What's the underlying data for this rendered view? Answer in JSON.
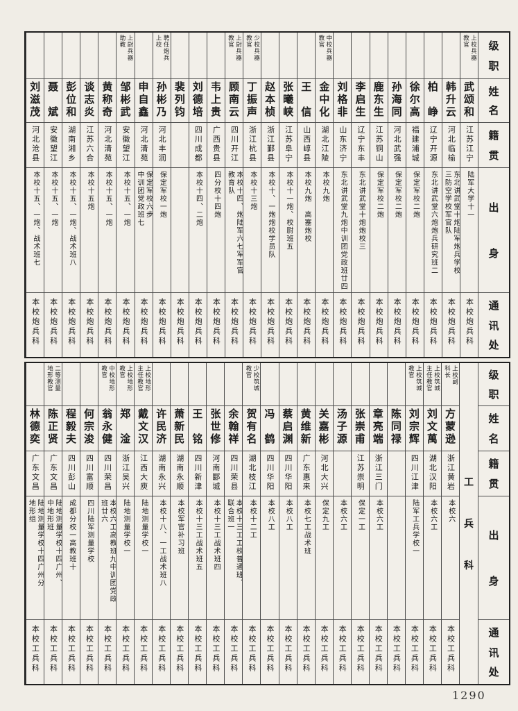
{
  "page": {
    "number": "1290"
  },
  "colors": {
    "paper": "#f0ede6",
    "ink": "#1b1b1b",
    "border": "#4a4a4a"
  },
  "row_headers": {
    "rank": "级职",
    "name": "姓名",
    "native_place": "籍贯",
    "origin": "出身",
    "address": "通讯处"
  },
  "column_order": "right-to-left",
  "sections": [
    {
      "id": "artillery",
      "section_label": "",
      "people": [
        {
          "rank": "上校兵器\n教官",
          "name": "武颂和",
          "native_place": "江苏江宁",
          "origin": "陆军大学十一",
          "address": "本校炮兵科"
        },
        {
          "rank": "",
          "name": "韩升云",
          "native_place": "河北临榆",
          "origin": "东北讲武堂十炮陆军炮兵学校\n三防空学校军官队",
          "address": "本校炮兵科"
        },
        {
          "rank": "",
          "name": "柏峥",
          "native_place": "辽宁开源",
          "origin": "东北讲武堂六炮炮兵研究班二",
          "address": "本校炮兵科"
        },
        {
          "rank": "",
          "name": "徐尔高",
          "native_place": "福建浦城",
          "origin": "保定军校二炮",
          "address": "本校炮兵科"
        },
        {
          "rank": "",
          "name": "孙海同",
          "native_place": "河北武强",
          "origin": "保定军校二炮",
          "address": "本校炮兵科"
        },
        {
          "rank": "",
          "name": "鹿东生",
          "native_place": "江苏铜山",
          "origin": "保定军校二炮",
          "address": "本校炮兵科"
        },
        {
          "rank": "",
          "name": "李启生",
          "native_place": "辽宁东丰",
          "origin": "东北讲武堂十炮炮校三",
          "address": "本校炮兵科"
        },
        {
          "rank": "",
          "name": "刘格非",
          "native_place": "山东济宁",
          "origin": "东北讲武堂九炮中训团党政班廿四",
          "address": "本校炮兵科"
        },
        {
          "rank": "中校兵器\n教官",
          "name": "金中化",
          "native_place": "湖北江陵",
          "origin": "本校九炮",
          "address": "本校炮兵科"
        },
        {
          "rank": "",
          "name": "王信",
          "native_place": "山西崞县",
          "origin": "本校九炮　高塞炮校",
          "address": "本校炮兵科"
        },
        {
          "rank": "",
          "name": "张曦峡",
          "native_place": "江苏阜宁",
          "origin": "本校十一炮、校尉班五",
          "address": "本校炮兵科"
        },
        {
          "rank": "",
          "name": "赵本桢",
          "native_place": "浙江鄞县",
          "origin": "本校十、一炮炮校学员队",
          "address": "本校炮兵科"
        },
        {
          "rank": "少校兵器\n教官",
          "name": "丁振声",
          "native_place": "浙江杭县",
          "origin": "本校十三炮",
          "address": "本校炮兵科"
        },
        {
          "rank": "上尉兵器\n教官",
          "name": "顾南云",
          "native_place": "四川开江",
          "origin": "本校十四、炮陆军六七军军官\n教育队",
          "address": "本校炮兵科"
        },
        {
          "rank": "",
          "name": "韦上贵",
          "native_place": "广西贵县",
          "origin": "四分校十四炮",
          "address": "本校炮兵科"
        },
        {
          "rank": "",
          "name": "刘德培",
          "native_place": "四川成都",
          "origin": "本校十四、二炮",
          "address": "本校炮兵科"
        },
        {
          "rank": "",
          "name": "裴列钧",
          "native_place": "",
          "origin": "",
          "address": "本校炮兵科"
        },
        {
          "rank": "聘任炮兵\n上校",
          "name": "孙彬乃",
          "native_place": "河北丰润",
          "origin": "保定军校一炮",
          "address": "本校炮兵科"
        },
        {
          "rank": "",
          "name": "申自鑫",
          "native_place": "河北清苑",
          "origin": "保定军校六步\n中训团党政班七",
          "address": "本校炮兵科"
        },
        {
          "rank": "上尉兵器\n助教",
          "name": "邹彬武",
          "native_place": "安徽望江",
          "origin": "本校十五、一炮",
          "address": "本校炮兵科"
        },
        {
          "rank": "",
          "name": "黄称奇",
          "native_place": "河北清苑",
          "origin": "本校十五、一炮",
          "address": "本校炮兵科"
        },
        {
          "rank": "",
          "name": "谈志炎",
          "native_place": "江苏六合",
          "origin": "本校十五炮",
          "address": "本校炮兵科"
        },
        {
          "rank": "",
          "name": "彭位和",
          "native_place": "湖南湘乡",
          "origin": "本校十五、一炮、战术班八",
          "address": "本校炮兵科"
        },
        {
          "rank": "",
          "name": "聂斌",
          "native_place": "安徽望江",
          "origin": "本校十五、一炮",
          "address": "本校炮兵科"
        },
        {
          "rank": "",
          "name": "刘滋茂",
          "native_place": "河北沧县",
          "origin": "本校十五、一炮、战术班七",
          "address": "本校炮兵科"
        }
      ]
    },
    {
      "id": "engineer",
      "section_label": "工兵科",
      "people": [
        {
          "rank": "上校副\n科长",
          "name": "方蒙逊",
          "native_place": "浙江黄岩",
          "origin": "本校六",
          "address": "本校工兵科"
        },
        {
          "rank": "上校筑城\n主任教官",
          "name": "刘文萬",
          "native_place": "湖北汉阳",
          "origin": "本校六工",
          "address": "本校工兵科"
        },
        {
          "rank": "上校筑城\n教官",
          "name": "刘宗辉",
          "native_place": "四川江津",
          "origin": "陆军工兵学校一",
          "address": "本校工兵科"
        },
        {
          "rank": "",
          "name": "陈同禄",
          "native_place": "",
          "origin": "",
          "address": "本校工兵科"
        },
        {
          "rank": "",
          "name": "章亮端",
          "native_place": "浙江三门",
          "origin": "本校六工",
          "address": "本校工兵科"
        },
        {
          "rank": "",
          "name": "张崇甫",
          "native_place": "江苏崇明",
          "origin": "保定一工",
          "address": "本校工兵科"
        },
        {
          "rank": "",
          "name": "汤子源",
          "native_place": "",
          "origin": "本校六工",
          "address": "本校工兵科"
        },
        {
          "rank": "",
          "name": "关嘉彬",
          "native_place": "河北大兴",
          "origin": "保定九工",
          "address": "本校工兵科"
        },
        {
          "rank": "",
          "name": "黄维新",
          "native_place": "广东惠来",
          "origin": "本校七工战术班",
          "address": "本校工兵科"
        },
        {
          "rank": "",
          "name": "蔡启渊",
          "native_place": "四川华阳",
          "origin": "本校八工",
          "address": "本校工兵科"
        },
        {
          "rank": "",
          "name": "冯鹤",
          "native_place": "四川华阳",
          "origin": "本校八工",
          "address": "本校工兵科"
        },
        {
          "rank": "少校筑城\n教官",
          "name": "贺有名",
          "native_place": "湖北枝江",
          "origin": "本校十二工",
          "address": "本校工兵科"
        },
        {
          "rank": "",
          "name": "余翰祥",
          "native_place": "四川荣县",
          "origin": "本校十三工工校普通班、\n联合班一",
          "address": "本校工兵科"
        },
        {
          "rank": "",
          "name": "张世修",
          "native_place": "河南郾城",
          "origin": "本校十三工战术班四",
          "address": "本校工兵科"
        },
        {
          "rank": "",
          "name": "王铭",
          "native_place": "四川新津",
          "origin": "本校十三工战术班五",
          "address": "本校工兵科"
        },
        {
          "rank": "",
          "name": "萧新民",
          "native_place": "湖南永顺",
          "origin": "本校军官补习班",
          "address": "本校工兵科"
        },
        {
          "rank": "",
          "name": "许民济",
          "native_place": "湖南永兴",
          "origin": "本校十八、一工战术班八",
          "address": "本校工兵科"
        },
        {
          "rank": "上校地形\n主任教官",
          "name": "戴文汉",
          "native_place": "江西大庾",
          "origin": "陆地测量学校一",
          "address": "本校工兵科"
        },
        {
          "rank": "上校地形\n教官",
          "name": "郑淦",
          "native_place": "浙江吴兴",
          "origin": "陆地测量学校一",
          "address": "本校工兵科"
        },
        {
          "rank": "中校地形\n教官",
          "name": "翁永健",
          "native_place": "四川荣昌",
          "origin": "本校六工高教班九中训团党政\n班廿六",
          "address": "本校工兵科"
        },
        {
          "rank": "",
          "name": "何宗浚",
          "native_place": "四川富顺",
          "origin": "四川陆军测量学校",
          "address": "本校工兵科"
        },
        {
          "rank": "",
          "name": "程毅夫",
          "native_place": "四川彭山",
          "origin": "成都分校一高教班十",
          "address": "本校工兵科"
        },
        {
          "rank": "二等测量\n地形教官",
          "name": "陈正贤",
          "native_place": "广东文昌",
          "origin": "陆地测量学校十四广州、\n中地形班",
          "address": "本校工兵科"
        },
        {
          "rank": "",
          "name": "林德奕",
          "native_place": "广东文昌",
          "origin": "陆地测量学校十四广州分\n地形组",
          "address": "本校工兵科"
        }
      ]
    }
  ]
}
